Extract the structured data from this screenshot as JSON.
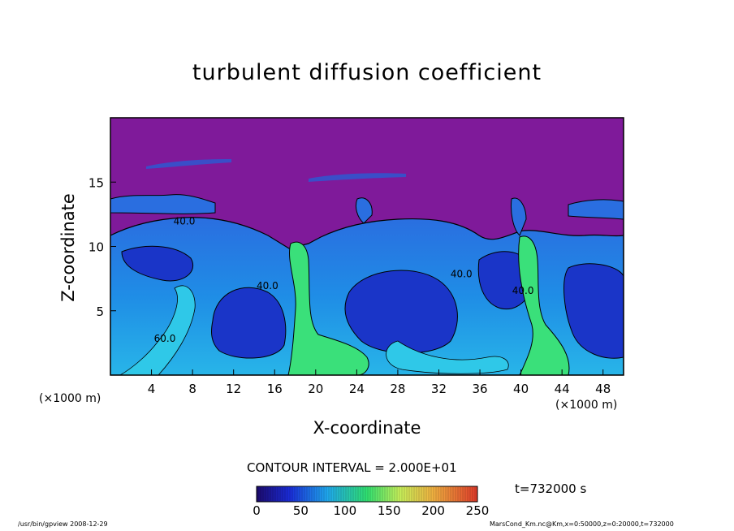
{
  "chart_data": {
    "type": "heatmap",
    "title": "turbulent diffusion coefficient",
    "xlabel": "X-coordinate",
    "ylabel": "Z-coordinate",
    "x_unit_label": "(×1000 m)",
    "xlim": [
      0,
      50
    ],
    "ylim": [
      0,
      20
    ],
    "x_ticks": [
      4,
      8,
      12,
      16,
      20,
      24,
      28,
      32,
      36,
      40,
      44,
      48
    ],
    "y_ticks": [
      5,
      10,
      15
    ],
    "contour_labels": [
      {
        "text": "40.0",
        "x": 7.2,
        "z": 11.7
      },
      {
        "text": "40.0",
        "x": 15.3,
        "z": 6.7
      },
      {
        "text": "60.0",
        "x": 5.3,
        "z": 2.6
      },
      {
        "text": "40.0",
        "x": 34.2,
        "z": 7.6
      },
      {
        "text": "40.0",
        "x": 40.2,
        "z": 6.3
      }
    ],
    "contour_interval": "CONTOUR INTERVAL = 2.000E+01",
    "colorbar": {
      "range": [
        0,
        250
      ],
      "tick_labels": [
        "0",
        "50",
        "100",
        "150",
        "200",
        "250"
      ]
    },
    "time": "t=732000 s",
    "colors": {
      "background_field": "#7f1a9a",
      "low": "#1428c8",
      "mid": "#2a9be6",
      "high": "#30e070"
    }
  },
  "footer": {
    "left": "/usr/bin/gpview   2008-12-29",
    "right": "MarsCond_Km.nc@Km,x=0:50000,z=0:20000,t=732000"
  }
}
